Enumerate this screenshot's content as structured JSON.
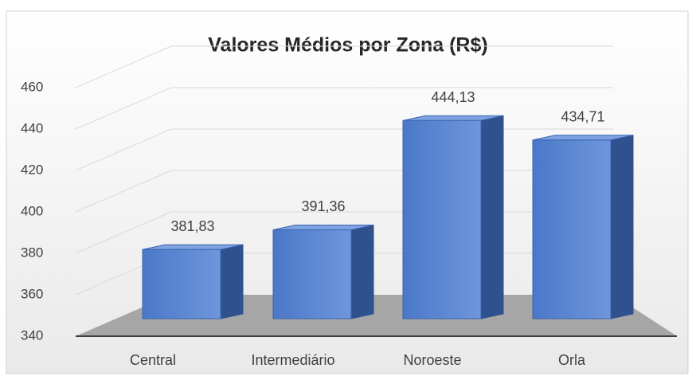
{
  "chart_data": {
    "type": "bar",
    "title": "Valores Médios por Zona (R$)",
    "categories": [
      "Central",
      "Intermediário",
      "Noroeste",
      "Orla"
    ],
    "values": [
      381.83,
      391.36,
      444.13,
      434.71
    ],
    "value_labels": [
      "381,83",
      "391,36",
      "444,13",
      "434,71"
    ],
    "color": "#4472c4",
    "ylim": [
      340,
      460
    ],
    "yticks": [
      340,
      360,
      380,
      400,
      420,
      440,
      460
    ],
    "grid": true
  }
}
